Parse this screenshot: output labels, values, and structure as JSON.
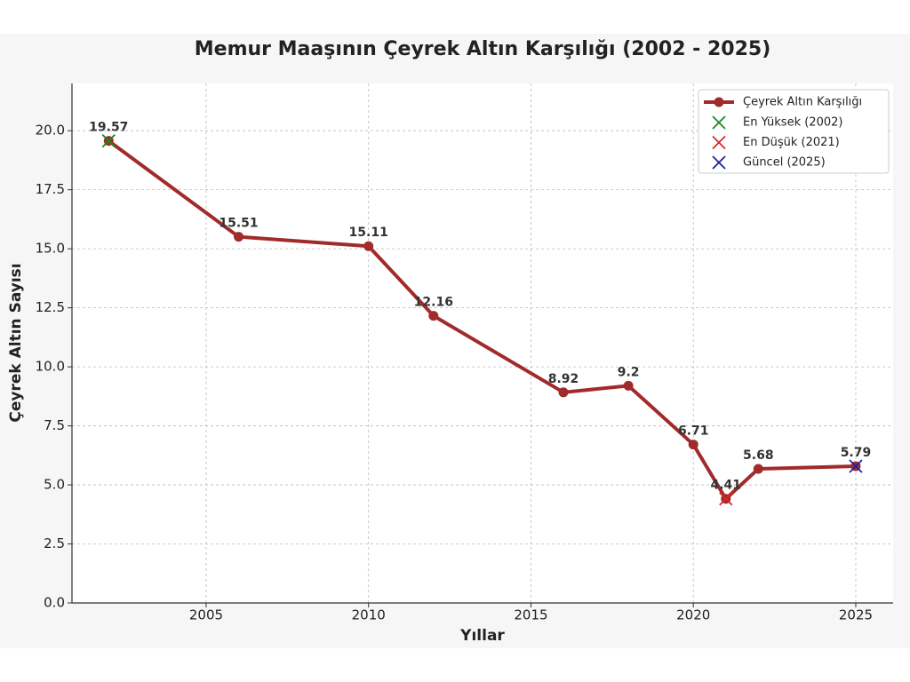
{
  "chart_data": {
    "type": "line",
    "title": "Memur Maaşının Çeyrek Altın Karşılığı (2002 - 2025)",
    "xlabel": "Yıllar",
    "ylabel": "Çeyrek Altın Sayısı",
    "x": [
      2002,
      2006,
      2010,
      2012,
      2016,
      2018,
      2020,
      2021,
      2022,
      2025
    ],
    "series": [
      {
        "name": "Çeyrek Altın Karşılığı",
        "color": "#a12b2b",
        "values": [
          19.57,
          15.51,
          15.11,
          12.16,
          8.92,
          9.2,
          6.71,
          4.41,
          5.68,
          5.79
        ]
      }
    ],
    "markers": [
      {
        "name": "En Yüksek (2002)",
        "color": "#1a8a1a",
        "x": 2002,
        "value": 19.57
      },
      {
        "name": "En Düşük (2021)",
        "color": "#d62728",
        "x": 2021,
        "value": 4.41
      },
      {
        "name": "Güncel (2025)",
        "color": "#1f1fa0",
        "x": 2025,
        "value": 5.79
      }
    ],
    "xlim": [
      2000.87,
      2026.15
    ],
    "xticks": [
      2005,
      2010,
      2015,
      2020,
      2025
    ],
    "ylim": [
      0,
      22
    ],
    "yticks": [
      {
        "value": 0,
        "label": "0.0"
      },
      2.5,
      {
        "value": 5,
        "label": "5.0"
      },
      7.5,
      {
        "value": 10,
        "label": "10.0"
      },
      12.5,
      {
        "value": 15,
        "label": "15.0"
      },
      17.5,
      {
        "value": 20,
        "label": "20.0"
      }
    ],
    "grid": true,
    "legend": "upper right"
  }
}
